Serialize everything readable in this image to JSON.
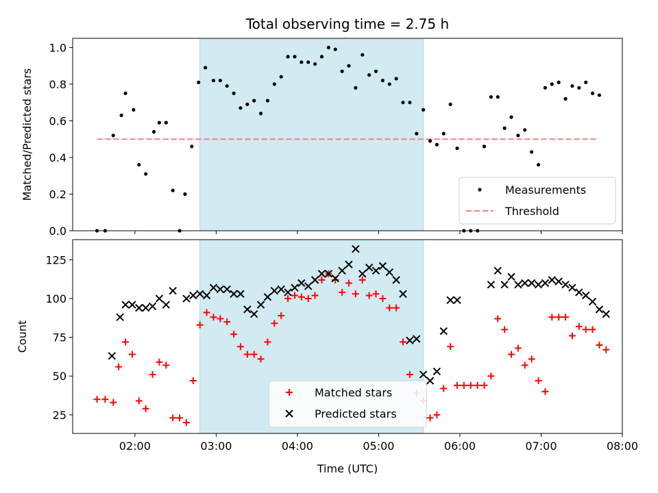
{
  "chart_data": [
    {
      "type": "scatter",
      "title": "Total observing time = 2.75 h",
      "xlabel": "",
      "ylabel": "Matched/Predicted stars",
      "xlim": [
        "01:14",
        "08:00"
      ],
      "ylim": [
        0,
        1.05
      ],
      "yticks": [
        "0.0",
        "0.2",
        "0.4",
        "0.6",
        "0.8",
        "1.0"
      ],
      "highlight": {
        "start": "02:48",
        "end": "05:33",
        "color": "#add8e6"
      },
      "threshold": {
        "name": "Threshold",
        "y": 0.5,
        "x_start": "01:32",
        "x_end": "07:42",
        "color": "#f08080"
      },
      "legend": {
        "position": "lower-right",
        "entries": [
          "Measurements",
          "Threshold"
        ]
      },
      "series": [
        {
          "name": "Measurements",
          "color": "#000000",
          "points": [
            [
              "01:32",
              0.0
            ],
            [
              "01:38",
              0.0
            ],
            [
              "01:44",
              0.52
            ],
            [
              "01:50",
              0.63
            ],
            [
              "01:53",
              0.75
            ],
            [
              "01:59",
              0.66
            ],
            [
              "02:03",
              0.36
            ],
            [
              "02:08",
              0.31
            ],
            [
              "02:14",
              0.54
            ],
            [
              "02:18",
              0.59
            ],
            [
              "02:23",
              0.59
            ],
            [
              "02:28",
              0.22
            ],
            [
              "02:33",
              0.0
            ],
            [
              "02:37",
              0.2
            ],
            [
              "02:42",
              0.46
            ],
            [
              "02:47",
              0.81
            ],
            [
              "02:52",
              0.89
            ],
            [
              "02:58",
              0.82
            ],
            [
              "03:03",
              0.82
            ],
            [
              "03:08",
              0.79
            ],
            [
              "03:13",
              0.75
            ],
            [
              "03:18",
              0.67
            ],
            [
              "03:23",
              0.69
            ],
            [
              "03:28",
              0.71
            ],
            [
              "03:33",
              0.64
            ],
            [
              "03:38",
              0.71
            ],
            [
              "03:43",
              0.8
            ],
            [
              "03:48",
              0.84
            ],
            [
              "03:53",
              0.95
            ],
            [
              "03:58",
              0.95
            ],
            [
              "04:03",
              0.92
            ],
            [
              "04:08",
              0.92
            ],
            [
              "04:13",
              0.91
            ],
            [
              "04:18",
              0.95
            ],
            [
              "04:23",
              1.0
            ],
            [
              "04:28",
              0.99
            ],
            [
              "04:33",
              0.87
            ],
            [
              "04:38",
              0.9
            ],
            [
              "04:43",
              0.78
            ],
            [
              "04:48",
              0.96
            ],
            [
              "04:53",
              0.85
            ],
            [
              "04:58",
              0.87
            ],
            [
              "05:03",
              0.82
            ],
            [
              "05:08",
              0.8
            ],
            [
              "05:13",
              0.83
            ],
            [
              "05:18",
              0.7
            ],
            [
              "05:23",
              0.7
            ],
            [
              "05:28",
              0.53
            ],
            [
              "05:33",
              0.66
            ],
            [
              "05:38",
              0.49
            ],
            [
              "05:43",
              0.47
            ],
            [
              "05:48",
              0.53
            ],
            [
              "05:53",
              0.69
            ],
            [
              "05:58",
              0.45
            ],
            [
              "06:03",
              0.0
            ],
            [
              "06:08",
              0.0
            ],
            [
              "06:13",
              0.0
            ],
            [
              "06:18",
              0.46
            ],
            [
              "06:23",
              0.73
            ],
            [
              "06:28",
              0.73
            ],
            [
              "06:33",
              0.56
            ],
            [
              "06:38",
              0.62
            ],
            [
              "06:43",
              0.52
            ],
            [
              "06:48",
              0.55
            ],
            [
              "06:53",
              0.43
            ],
            [
              "06:58",
              0.36
            ],
            [
              "07:03",
              0.78
            ],
            [
              "07:08",
              0.8
            ],
            [
              "07:13",
              0.81
            ],
            [
              "07:18",
              0.72
            ],
            [
              "07:23",
              0.79
            ],
            [
              "07:28",
              0.78
            ],
            [
              "07:33",
              0.81
            ],
            [
              "07:38",
              0.75
            ],
            [
              "07:43",
              0.74
            ]
          ]
        }
      ]
    },
    {
      "type": "scatter",
      "title": "",
      "xlabel": "Time (UTC)",
      "ylabel": "Count",
      "xlim": [
        "01:14",
        "08:00"
      ],
      "ylim": [
        13,
        138
      ],
      "xticks": [
        "02:00",
        "03:00",
        "04:00",
        "05:00",
        "06:00",
        "07:00",
        "08:00"
      ],
      "yticks": [
        "25",
        "50",
        "75",
        "100",
        "125"
      ],
      "highlight": {
        "start": "02:48",
        "end": "05:33",
        "color": "#add8e6"
      },
      "legend": {
        "position": "lower-center",
        "entries": [
          "Matched stars",
          "Predicted stars"
        ]
      },
      "series": [
        {
          "name": "Matched stars",
          "color": "#ff0000",
          "marker": "plus",
          "points": [
            [
              "01:32",
              35
            ],
            [
              "01:38",
              35
            ],
            [
              "01:44",
              33
            ],
            [
              "01:48",
              56
            ],
            [
              "01:53",
              72
            ],
            [
              "01:58",
              64
            ],
            [
              "02:03",
              34
            ],
            [
              "02:08",
              29
            ],
            [
              "02:13",
              51
            ],
            [
              "02:18",
              59
            ],
            [
              "02:23",
              57
            ],
            [
              "02:28",
              23
            ],
            [
              "02:33",
              23
            ],
            [
              "02:38",
              20
            ],
            [
              "02:43",
              47
            ],
            [
              "02:48",
              83
            ],
            [
              "02:53",
              91
            ],
            [
              "02:58",
              88
            ],
            [
              "03:03",
              87
            ],
            [
              "03:08",
              85
            ],
            [
              "03:13",
              77
            ],
            [
              "03:18",
              69
            ],
            [
              "03:23",
              64
            ],
            [
              "03:28",
              64
            ],
            [
              "03:33",
              61
            ],
            [
              "03:38",
              72
            ],
            [
              "03:43",
              84
            ],
            [
              "03:48",
              89
            ],
            [
              "03:53",
              100
            ],
            [
              "03:58",
              102
            ],
            [
              "04:03",
              101
            ],
            [
              "04:08",
              100
            ],
            [
              "04:13",
              102
            ],
            [
              "04:18",
              112
            ],
            [
              "04:23",
              116
            ],
            [
              "04:28",
              112
            ],
            [
              "04:33",
              104
            ],
            [
              "04:38",
              110
            ],
            [
              "04:43",
              103
            ],
            [
              "04:48",
              112
            ],
            [
              "04:53",
              102
            ],
            [
              "04:58",
              103
            ],
            [
              "05:03",
              100
            ],
            [
              "05:08",
              94
            ],
            [
              "05:13",
              94
            ],
            [
              "05:18",
              72
            ],
            [
              "05:23",
              51
            ],
            [
              "05:28",
              39
            ],
            [
              "05:33",
              34
            ],
            [
              "05:38",
              23
            ],
            [
              "05:43",
              25
            ],
            [
              "05:48",
              42
            ],
            [
              "05:53",
              69
            ],
            [
              "05:58",
              44
            ],
            [
              "06:03",
              44
            ],
            [
              "06:08",
              44
            ],
            [
              "06:13",
              44
            ],
            [
              "06:18",
              44
            ],
            [
              "06:23",
              50
            ],
            [
              "06:28",
              87
            ],
            [
              "06:33",
              80
            ],
            [
              "06:38",
              64
            ],
            [
              "06:43",
              68
            ],
            [
              "06:48",
              57
            ],
            [
              "06:53",
              61
            ],
            [
              "06:58",
              47
            ],
            [
              "07:03",
              40
            ],
            [
              "07:08",
              88
            ],
            [
              "07:13",
              88
            ],
            [
              "07:18",
              88
            ],
            [
              "07:23",
              76
            ],
            [
              "07:28",
              82
            ],
            [
              "07:33",
              80
            ],
            [
              "07:38",
              80
            ],
            [
              "07:43",
              70
            ],
            [
              "07:48",
              67
            ]
          ]
        },
        {
          "name": "Predicted stars",
          "color": "#000000",
          "marker": "x",
          "points": [
            [
              "01:43",
              63
            ],
            [
              "01:49",
              88
            ],
            [
              "01:53",
              96
            ],
            [
              "01:58",
              96
            ],
            [
              "02:03",
              94
            ],
            [
              "02:08",
              94
            ],
            [
              "02:13",
              95
            ],
            [
              "02:18",
              100
            ],
            [
              "02:23",
              96
            ],
            [
              "02:28",
              105
            ],
            [
              "02:38",
              100
            ],
            [
              "02:43",
              102
            ],
            [
              "02:48",
              103
            ],
            [
              "02:53",
              102
            ],
            [
              "02:58",
              107
            ],
            [
              "03:03",
              106
            ],
            [
              "03:08",
              106
            ],
            [
              "03:13",
              103
            ],
            [
              "03:18",
              103
            ],
            [
              "03:23",
              93
            ],
            [
              "03:28",
              90
            ],
            [
              "03:33",
              96
            ],
            [
              "03:38",
              101
            ],
            [
              "03:43",
              105
            ],
            [
              "03:48",
              106
            ],
            [
              "03:53",
              104
            ],
            [
              "03:58",
              107
            ],
            [
              "04:03",
              110
            ],
            [
              "04:08",
              108
            ],
            [
              "04:13",
              112
            ],
            [
              "04:18",
              116
            ],
            [
              "04:23",
              116
            ],
            [
              "04:28",
              113
            ],
            [
              "04:33",
              118
            ],
            [
              "04:38",
              122
            ],
            [
              "04:43",
              132
            ],
            [
              "04:48",
              116
            ],
            [
              "04:53",
              120
            ],
            [
              "04:58",
              118
            ],
            [
              "05:03",
              121
            ],
            [
              "05:08",
              117
            ],
            [
              "05:13",
              112
            ],
            [
              "05:18",
              103
            ],
            [
              "05:23",
              73
            ],
            [
              "05:28",
              74
            ],
            [
              "05:33",
              51
            ],
            [
              "05:38",
              47
            ],
            [
              "05:43",
              53
            ],
            [
              "05:48",
              79
            ],
            [
              "05:53",
              99
            ],
            [
              "05:58",
              99
            ],
            [
              "06:23",
              109
            ],
            [
              "06:28",
              118
            ],
            [
              "06:33",
              109
            ],
            [
              "06:38",
              114
            ],
            [
              "06:43",
              109
            ],
            [
              "06:48",
              110
            ],
            [
              "06:53",
              110
            ],
            [
              "06:58",
              109
            ],
            [
              "07:03",
              110
            ],
            [
              "07:08",
              112
            ],
            [
              "07:13",
              111
            ],
            [
              "07:18",
              109
            ],
            [
              "07:23",
              107
            ],
            [
              "07:28",
              104
            ],
            [
              "07:33",
              102
            ],
            [
              "07:38",
              98
            ],
            [
              "07:43",
              93
            ],
            [
              "07:48",
              90
            ]
          ]
        }
      ]
    }
  ]
}
